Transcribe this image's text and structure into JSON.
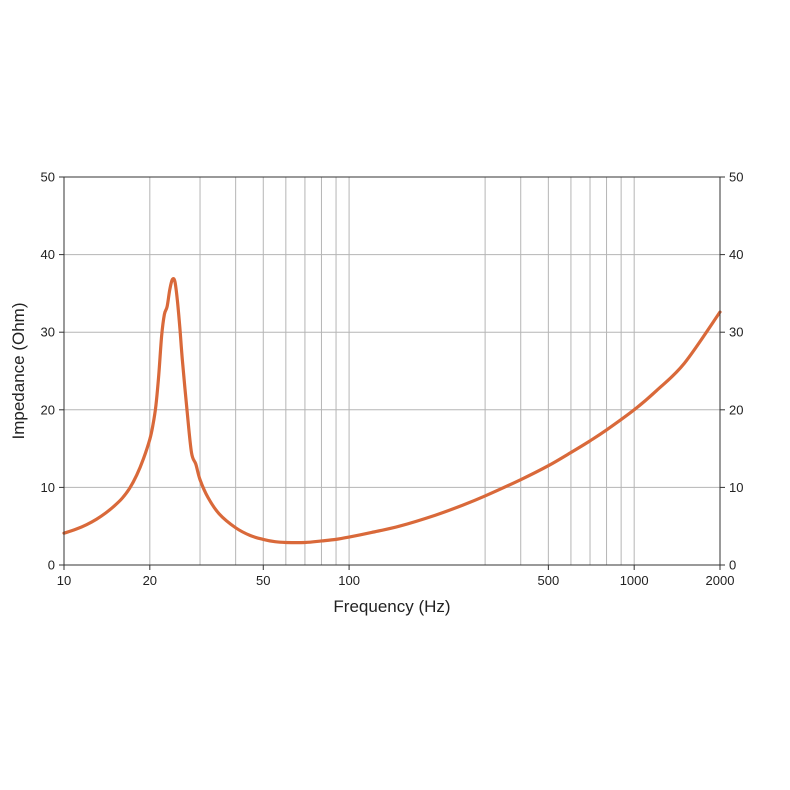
{
  "chart_data": {
    "type": "line",
    "title": "",
    "xlabel": "Frequency (Hz)",
    "ylabel": "Impedance (Ohm)",
    "x_scale": "log",
    "xlim": [
      10,
      2000
    ],
    "ylim": [
      0,
      50
    ],
    "grid": true,
    "x_gridlines": [
      20,
      30,
      40,
      50,
      60,
      70,
      80,
      90,
      100,
      300,
      400,
      500,
      600,
      700,
      800,
      900,
      1000
    ],
    "x_ticks": [
      {
        "value": 10,
        "label": "10"
      },
      {
        "value": 20,
        "label": "20"
      },
      {
        "value": 50,
        "label": "50"
      },
      {
        "value": 100,
        "label": "100"
      },
      {
        "value": 500,
        "label": "500"
      },
      {
        "value": 1000,
        "label": "1000"
      },
      {
        "value": 2000,
        "label": "2000"
      }
    ],
    "y_ticks": [
      {
        "value": 0,
        "label": "0"
      },
      {
        "value": 10,
        "label": "10"
      },
      {
        "value": 20,
        "label": "20"
      },
      {
        "value": 30,
        "label": "30"
      },
      {
        "value": 40,
        "label": "40"
      },
      {
        "value": 50,
        "label": "50"
      }
    ],
    "series_color": "#d9693a",
    "series": [
      {
        "x": [
          10,
          11,
          12,
          13,
          14,
          15,
          16,
          17,
          18,
          19,
          20,
          20.5,
          21,
          21.5,
          22,
          22.5,
          23,
          23.5,
          24,
          24.5,
          25,
          25.5,
          26,
          27,
          28,
          29,
          30,
          32,
          35,
          40,
          45,
          50,
          55,
          60,
          70,
          80,
          90,
          100,
          120,
          150,
          200,
          250,
          300,
          400,
          500,
          600,
          700,
          800,
          1000,
          1200,
          1500,
          2000
        ],
        "y": [
          4.1,
          4.6,
          5.2,
          5.9,
          6.7,
          7.6,
          8.6,
          9.9,
          11.6,
          13.7,
          16.2,
          18.0,
          20.5,
          24.5,
          29.5,
          32.3,
          33.3,
          35.5,
          36.8,
          36.5,
          34.0,
          30.5,
          26.5,
          20.0,
          14.5,
          13.0,
          11.0,
          8.7,
          6.6,
          4.8,
          3.8,
          3.3,
          3.0,
          2.9,
          2.9,
          3.1,
          3.3,
          3.6,
          4.2,
          5.0,
          6.4,
          7.7,
          8.9,
          11.0,
          12.8,
          14.5,
          16.0,
          17.4,
          20.0,
          22.5,
          26.0,
          32.6
        ]
      }
    ]
  }
}
